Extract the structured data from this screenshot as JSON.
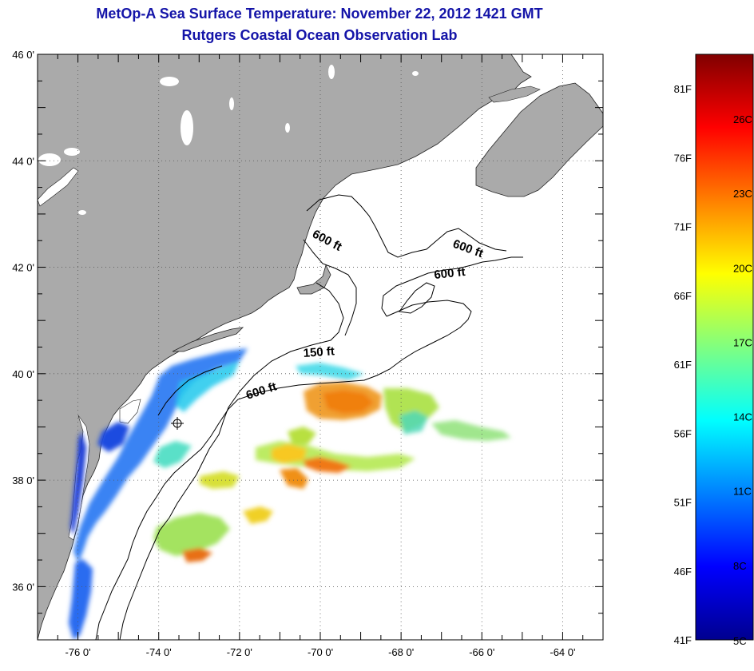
{
  "title": {
    "line1": "MetOp-A Sea Surface Temperature:  November 22, 2012 1421 GMT",
    "line2": "Rutgers Coastal Ocean Observation Lab"
  },
  "map": {
    "lon_range": [
      -77,
      -63
    ],
    "lat_range": [
      35,
      46
    ],
    "lon_ticks": [
      {
        "value": -76,
        "label": "-76 0'"
      },
      {
        "value": -74,
        "label": "-74 0'"
      },
      {
        "value": -72,
        "label": "-72 0'"
      },
      {
        "value": -70,
        "label": "-70 0'"
      },
      {
        "value": -68,
        "label": "-68 0'"
      },
      {
        "value": -66,
        "label": "-66 0'"
      },
      {
        "value": -64,
        "label": "-64 0'"
      }
    ],
    "lat_ticks": [
      {
        "value": 36,
        "label": "36 0'"
      },
      {
        "value": 38,
        "label": "38 0'"
      },
      {
        "value": 40,
        "label": "40 0'"
      },
      {
        "value": 42,
        "label": "42 0'"
      },
      {
        "value": 44,
        "label": "44 0'"
      },
      {
        "value": 46,
        "label": "46 0'"
      }
    ],
    "gridlines": true,
    "land_color": "#aaaaaa",
    "ocean_color": "#ffffff",
    "contour_labels": [
      {
        "text": "600 ft"
      },
      {
        "text": "600 ft"
      },
      {
        "text": "600 ft"
      },
      {
        "text": "150 ft"
      },
      {
        "text": "600 ft"
      }
    ]
  },
  "colorbar": {
    "colors": [
      "#00008f",
      "#0000ff",
      "#0080ff",
      "#00ffff",
      "#80ff80",
      "#ffff00",
      "#ff8000",
      "#ff0000",
      "#800000"
    ],
    "fahrenheit_labels": [
      "81F",
      "76F",
      "71F",
      "66F",
      "61F",
      "56F",
      "51F",
      "46F",
      "41F"
    ],
    "celsius_labels": [
      "26C",
      "23C",
      "20C",
      "17C",
      "14C",
      "11C",
      "8C",
      "5C"
    ]
  }
}
